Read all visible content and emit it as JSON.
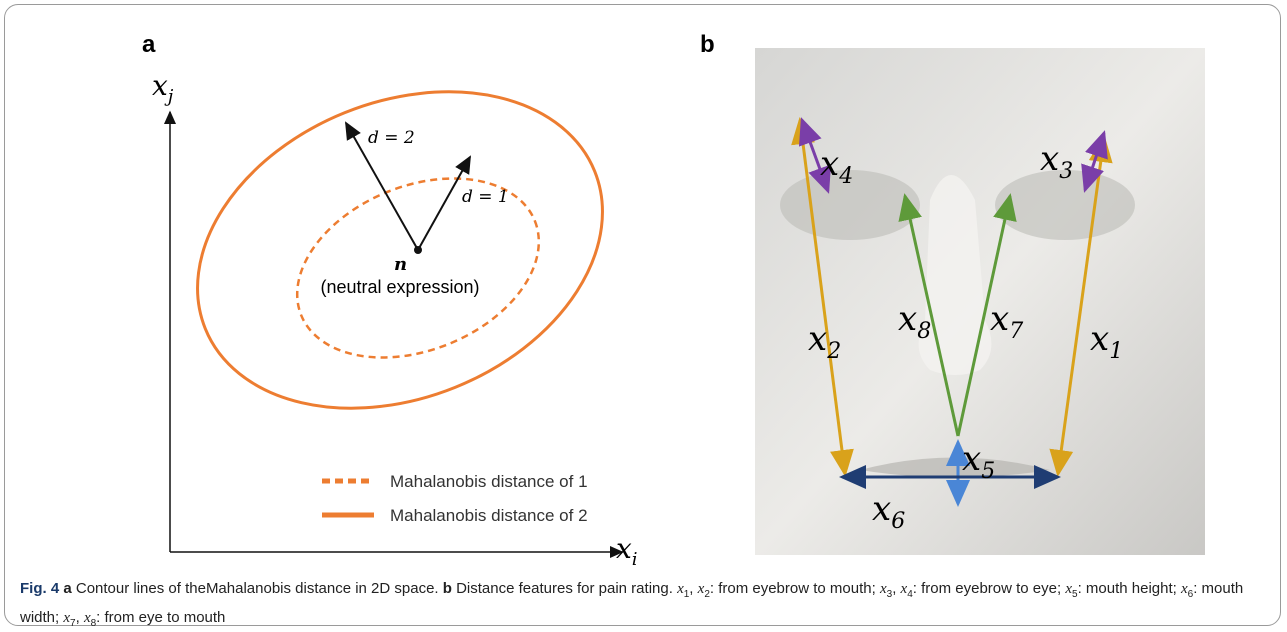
{
  "figure": {
    "panel_a": {
      "label": "a",
      "y_axis": {
        "var": "x",
        "sub": "j"
      },
      "x_axis": {
        "var": "x",
        "sub": "i"
      },
      "arrow_labels": [
        "d = 2",
        "d = 1"
      ],
      "center": {
        "symbol": "n",
        "text": "(neutral expression)"
      },
      "legend": [
        "Mahalanobis distance of 1",
        "Mahalanobis distance of 2"
      ]
    },
    "panel_b": {
      "label": "b",
      "features": [
        {
          "var": "x",
          "sub": "1"
        },
        {
          "var": "x",
          "sub": "2"
        },
        {
          "var": "x",
          "sub": "3"
        },
        {
          "var": "x",
          "sub": "4"
        },
        {
          "var": "x",
          "sub": "5"
        },
        {
          "var": "x",
          "sub": "6"
        },
        {
          "var": "x",
          "sub": "7"
        },
        {
          "var": "x",
          "sub": "8"
        }
      ]
    },
    "caption": [
      {
        "text": "Fig. 4",
        "bold": true
      },
      {
        "text": "a",
        "bold": true
      },
      {
        "text": "Contour lines of theMahalanobis distance in 2D space."
      },
      {
        "text": "b",
        "bold": true
      },
      {
        "text": "Distance features for pain rating."
      },
      {
        "var": "x",
        "sub": "1"
      },
      {
        "text": ","
      },
      {
        "var": "x",
        "sub": "2"
      },
      {
        "text": ": from eyebrow to mouth;"
      },
      {
        "var": "x",
        "sub": "3"
      },
      {
        "text": ","
      },
      {
        "var": "x",
        "sub": "4"
      },
      {
        "text": ": from eyebrow to eye;"
      },
      {
        "var": "x",
        "sub": "5"
      },
      {
        "text": ": mouth height;"
      },
      {
        "var": "x",
        "sub": "6"
      },
      {
        "text": ": mouth width;"
      },
      {
        "var": "x",
        "sub": "7"
      },
      {
        "text": ","
      },
      {
        "var": "x",
        "sub": "8"
      },
      {
        "text": ": from eye to mouth"
      }
    ]
  }
}
